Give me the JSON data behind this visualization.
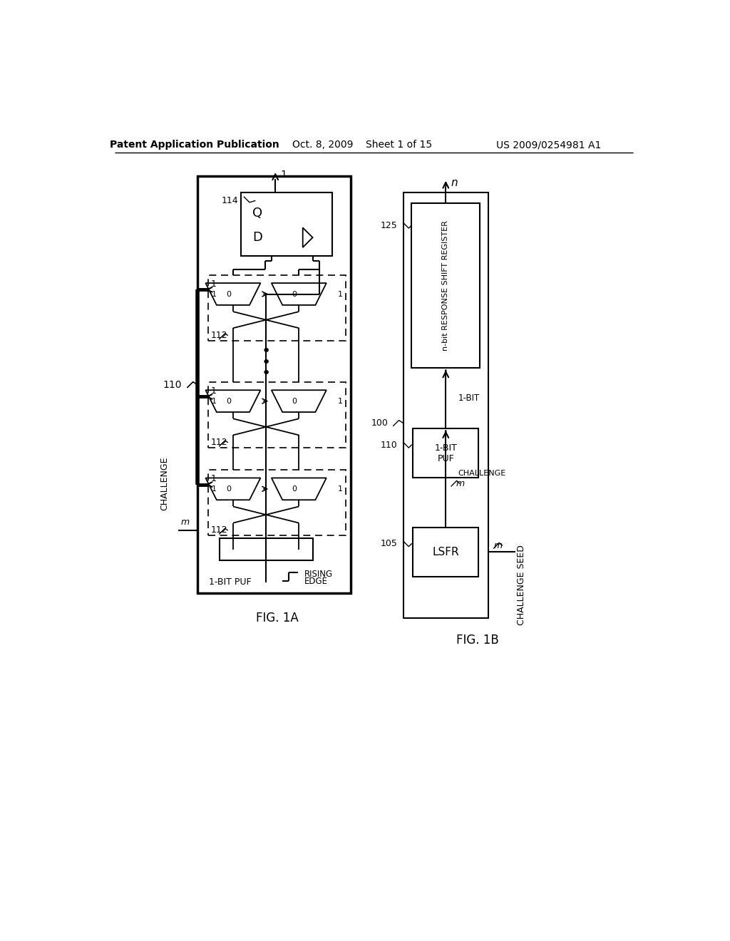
{
  "bg_color": "#ffffff",
  "header_left": "Patent Application Publication",
  "header_mid": "Oct. 8, 2009    Sheet 1 of 15",
  "header_right": "US 2009/0254981 A1",
  "fig1a_label": "FIG. 1A",
  "fig1b_label": "FIG. 1B"
}
